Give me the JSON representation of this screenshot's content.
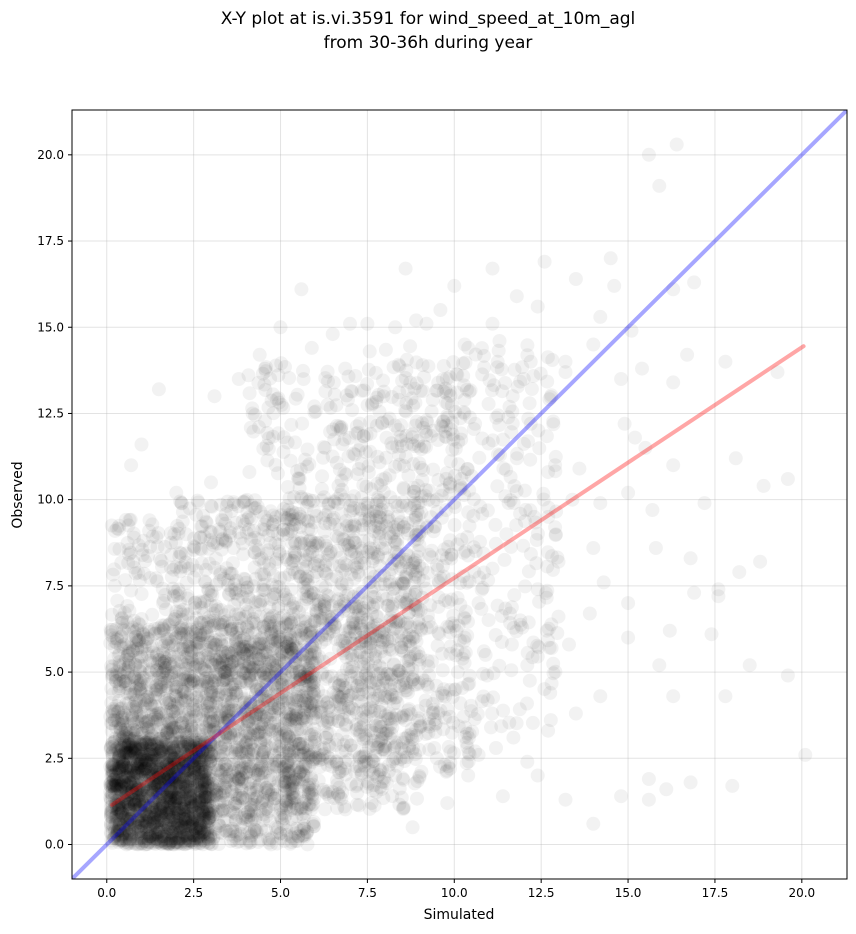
{
  "chart_data": {
    "type": "scatter",
    "title_line1": "X-Y plot at is.vi.3591 for wind_speed_at_10m_agl",
    "title_line2": "from 30-36h during year",
    "xlabel": "Simulated",
    "ylabel": "Observed",
    "xlim": [
      -1.0,
      21.3
    ],
    "ylim": [
      -1.0,
      21.3
    ],
    "xticks": [
      0.0,
      2.5,
      5.0,
      7.5,
      10.0,
      12.5,
      15.0,
      17.5,
      20.0
    ],
    "yticks": [
      0.0,
      2.5,
      5.0,
      7.5,
      10.0,
      12.5,
      15.0,
      17.5,
      20.0
    ],
    "xtick_labels": [
      "0.0",
      "2.5",
      "5.0",
      "7.5",
      "10.0",
      "12.5",
      "15.0",
      "17.5",
      "20.0"
    ],
    "ytick_labels": [
      "0.0",
      "2.5",
      "5.0",
      "7.5",
      "10.0",
      "12.5",
      "15.0",
      "17.5",
      "20.0"
    ],
    "grid": true,
    "point_color": "#000000",
    "point_alpha": 0.05,
    "points": [
      [
        15.6,
        20.0
      ],
      [
        16.4,
        20.3
      ],
      [
        15.9,
        19.1
      ],
      [
        20.1,
        2.6
      ],
      [
        19.6,
        4.9
      ],
      [
        18.5,
        5.2
      ],
      [
        17.8,
        4.3
      ],
      [
        18.0,
        1.7
      ],
      [
        16.8,
        1.8
      ],
      [
        15.6,
        1.3
      ],
      [
        15.6,
        1.9
      ],
      [
        14.8,
        1.4
      ],
      [
        16.1,
        1.6
      ],
      [
        14.0,
        0.6
      ],
      [
        13.2,
        1.3
      ],
      [
        12.4,
        2.0
      ],
      [
        11.4,
        1.4
      ],
      [
        10.4,
        2.0
      ],
      [
        10.6,
        2.7
      ],
      [
        9.8,
        1.2
      ],
      [
        8.8,
        0.5
      ],
      [
        16.3,
        4.3
      ],
      [
        17.4,
        6.1
      ],
      [
        18.2,
        7.9
      ],
      [
        18.8,
        8.2
      ],
      [
        19.6,
        10.6
      ],
      [
        17.6,
        7.2
      ],
      [
        16.9,
        7.3
      ],
      [
        17.2,
        9.9
      ],
      [
        18.1,
        11.2
      ],
      [
        18.9,
        10.4
      ],
      [
        17.8,
        14.0
      ],
      [
        16.7,
        14.2
      ],
      [
        17.6,
        7.4
      ],
      [
        16.8,
        8.3
      ],
      [
        16.2,
        6.2
      ],
      [
        15.8,
        8.6
      ],
      [
        15.0,
        6.0
      ],
      [
        15.9,
        5.2
      ],
      [
        15.0,
        7.0
      ],
      [
        15.7,
        9.7
      ],
      [
        16.9,
        16.3
      ],
      [
        16.3,
        16.1
      ],
      [
        15.4,
        13.8
      ],
      [
        14.8,
        13.5
      ],
      [
        14.6,
        16.2
      ],
      [
        14.2,
        15.3
      ],
      [
        14.5,
        17.0
      ],
      [
        13.5,
        16.4
      ],
      [
        12.6,
        16.9
      ],
      [
        11.1,
        16.7
      ],
      [
        8.6,
        16.7
      ],
      [
        11.8,
        15.9
      ],
      [
        11.1,
        15.1
      ],
      [
        10.4,
        14.4
      ],
      [
        19.3,
        13.7
      ],
      [
        14.0,
        14.5
      ],
      [
        15.1,
        14.9
      ],
      [
        13.2,
        14.0
      ],
      [
        12.4,
        15.6
      ],
      [
        12.2,
        12.2
      ],
      [
        14.9,
        12.2
      ],
      [
        16.3,
        13.4
      ],
      [
        15.2,
        11.8
      ],
      [
        15.0,
        10.2
      ],
      [
        14.2,
        9.9
      ],
      [
        15.5,
        11.5
      ],
      [
        16.3,
        11.0
      ],
      [
        13.6,
        10.9
      ],
      [
        14.0,
        8.6
      ],
      [
        14.3,
        7.6
      ],
      [
        13.9,
        6.7
      ],
      [
        13.3,
        5.8
      ],
      [
        12.1,
        5.2
      ],
      [
        11.6,
        6.7
      ],
      [
        12.8,
        5.7
      ],
      [
        14.2,
        4.3
      ],
      [
        13.5,
        3.8
      ],
      [
        12.7,
        3.3
      ],
      [
        12.1,
        2.4
      ],
      [
        11.7,
        3.1
      ],
      [
        11.2,
        2.8
      ],
      [
        10.7,
        2.6
      ],
      [
        3.0,
        10.5
      ],
      [
        1.5,
        13.2
      ],
      [
        1.0,
        11.6
      ],
      [
        0.7,
        11.0
      ],
      [
        2.0,
        10.2
      ],
      [
        4.4,
        14.2
      ],
      [
        5.6,
        16.1
      ],
      [
        5.9,
        14.4
      ],
      [
        5.0,
        15.0
      ],
      [
        3.8,
        13.5
      ],
      [
        3.1,
        13.0
      ],
      [
        4.2,
        12.5
      ],
      [
        6.5,
        14.8
      ],
      [
        7.0,
        15.1
      ],
      [
        7.5,
        15.1
      ],
      [
        8.3,
        15.0
      ],
      [
        8.9,
        15.2
      ],
      [
        9.2,
        15.1
      ],
      [
        9.6,
        15.5
      ],
      [
        10.3,
        14.5
      ],
      [
        11.3,
        14.6
      ],
      [
        10.0,
        16.2
      ],
      [
        12.2,
        14.0
      ],
      [
        13.2,
        13.7
      ],
      [
        12.0,
        13.5
      ],
      [
        9.4,
        12.0
      ],
      [
        10.6,
        12.2
      ],
      [
        11.8,
        11.2
      ],
      [
        12.7,
        10.8
      ],
      [
        13.4,
        10.0
      ],
      [
        12.3,
        9.5
      ],
      [
        11.5,
        9.0
      ],
      [
        12.9,
        9.2
      ],
      [
        11.1,
        8.0
      ],
      [
        12.4,
        7.4
      ],
      [
        13.0,
        8.2
      ],
      [
        10.7,
        7.0
      ],
      [
        11.9,
        6.5
      ],
      [
        10.3,
        6.0
      ],
      [
        10.9,
        5.5
      ],
      [
        10.1,
        5.0
      ],
      [
        9.7,
        4.5
      ],
      [
        9.4,
        3.9
      ],
      [
        9.0,
        3.4
      ],
      [
        8.7,
        2.8
      ],
      [
        9.5,
        2.5
      ],
      [
        8.3,
        2.0
      ]
    ],
    "density_clusters": [
      {
        "x": [
          0.1,
          3.0
        ],
        "y": [
          0.0,
          3.0
        ],
        "n": 1500
      },
      {
        "x": [
          0.1,
          6.0
        ],
        "y": [
          0.0,
          6.5
        ],
        "n": 1700
      },
      {
        "x": [
          2.0,
          9.0
        ],
        "y": [
          1.0,
          10.0
        ],
        "n": 1300
      },
      {
        "x": [
          4.0,
          10.5
        ],
        "y": [
          2.0,
          14.0
        ],
        "n": 750
      },
      {
        "x": [
          7.0,
          13.0
        ],
        "y": [
          3.0,
          14.5
        ],
        "n": 400
      },
      {
        "x": [
          0.1,
          2.0
        ],
        "y": [
          3.0,
          9.5
        ],
        "n": 200
      }
    ],
    "series": [
      {
        "type": "line",
        "color": "#0000ff",
        "alpha": 0.35,
        "points": [
          [
            -1.0,
            -1.0
          ],
          [
            21.3,
            21.3
          ]
        ]
      },
      {
        "type": "line",
        "color": "#ff0000",
        "alpha": 0.35,
        "points": [
          [
            0.15,
            1.15
          ],
          [
            20.05,
            14.45
          ]
        ]
      }
    ]
  }
}
